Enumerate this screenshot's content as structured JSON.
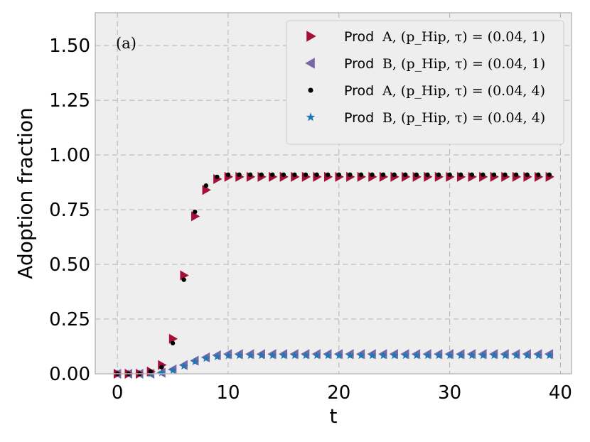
{
  "chart_data": {
    "type": "scatter",
    "annotation": "(a)",
    "xlabel": "t",
    "ylabel": "Adoption fraction",
    "xlim": [
      -2,
      41
    ],
    "ylim": [
      0,
      1.65
    ],
    "xticks": [
      0,
      10,
      20,
      30,
      40
    ],
    "xtick_labels": [
      "0",
      "10",
      "20",
      "30",
      "40"
    ],
    "yticks": [
      0,
      0.25,
      0.5,
      0.75,
      1.0,
      1.25,
      1.5
    ],
    "ytick_labels": [
      "0.00",
      "0.25",
      "0.50",
      "0.75",
      "1.00",
      "1.25",
      "1.50"
    ],
    "grid": true,
    "legend_position": "top-right",
    "x": [
      0,
      1,
      2,
      3,
      4,
      5,
      6,
      7,
      8,
      9,
      10,
      11,
      12,
      13,
      14,
      15,
      16,
      17,
      18,
      19,
      20,
      21,
      22,
      23,
      24,
      25,
      26,
      27,
      28,
      29,
      30,
      31,
      32,
      33,
      34,
      35,
      36,
      37,
      38,
      39
    ],
    "series": [
      {
        "name_prefix": "Prod",
        "name_math": "A, (p_Hip, τ) = (0.04, 1)",
        "marker": "triangle-right",
        "color": "#a50f38",
        "values": [
          0.0,
          0.0,
          0.0,
          0.01,
          0.04,
          0.16,
          0.45,
          0.72,
          0.84,
          0.89,
          0.9,
          0.9,
          0.9,
          0.9,
          0.9,
          0.9,
          0.9,
          0.9,
          0.9,
          0.9,
          0.9,
          0.9,
          0.9,
          0.9,
          0.9,
          0.9,
          0.9,
          0.9,
          0.9,
          0.9,
          0.9,
          0.9,
          0.9,
          0.9,
          0.9,
          0.9,
          0.9,
          0.9,
          0.9,
          0.9
        ]
      },
      {
        "name_prefix": "Prod",
        "name_math": "B, (p_Hip, τ) = (0.04, 1)",
        "marker": "triangle-left",
        "color": "#7a68a6",
        "values": [
          0.0,
          0.0,
          0.0,
          0.0,
          0.005,
          0.02,
          0.04,
          0.06,
          0.075,
          0.085,
          0.09,
          0.09,
          0.09,
          0.09,
          0.09,
          0.09,
          0.09,
          0.09,
          0.09,
          0.09,
          0.09,
          0.09,
          0.09,
          0.09,
          0.09,
          0.09,
          0.09,
          0.09,
          0.09,
          0.09,
          0.09,
          0.09,
          0.09,
          0.09,
          0.09,
          0.09,
          0.09,
          0.09,
          0.09,
          0.09
        ]
      },
      {
        "name_prefix": "Prod",
        "name_math": "A, (p_Hip, τ) = (0.04, 4)",
        "marker": "circle",
        "color": "#000000",
        "values": [
          0.0,
          0.0,
          0.0,
          0.01,
          0.03,
          0.14,
          0.43,
          0.74,
          0.86,
          0.9,
          0.91,
          0.91,
          0.91,
          0.91,
          0.91,
          0.91,
          0.91,
          0.91,
          0.91,
          0.91,
          0.91,
          0.91,
          0.91,
          0.91,
          0.91,
          0.91,
          0.91,
          0.91,
          0.91,
          0.91,
          0.91,
          0.91,
          0.91,
          0.91,
          0.91,
          0.91,
          0.91,
          0.91,
          0.91,
          0.91
        ]
      },
      {
        "name_prefix": "Prod",
        "name_math": "B, (p_Hip, τ) = (0.04, 4)",
        "marker": "star",
        "color": "#1f77b4",
        "values": [
          0.0,
          0.0,
          0.0,
          0.0,
          0.004,
          0.015,
          0.035,
          0.055,
          0.07,
          0.078,
          0.082,
          0.083,
          0.083,
          0.083,
          0.083,
          0.083,
          0.083,
          0.083,
          0.083,
          0.083,
          0.083,
          0.083,
          0.083,
          0.083,
          0.083,
          0.083,
          0.083,
          0.083,
          0.083,
          0.083,
          0.083,
          0.083,
          0.083,
          0.083,
          0.083,
          0.083,
          0.083,
          0.083,
          0.083,
          0.083
        ]
      }
    ]
  }
}
